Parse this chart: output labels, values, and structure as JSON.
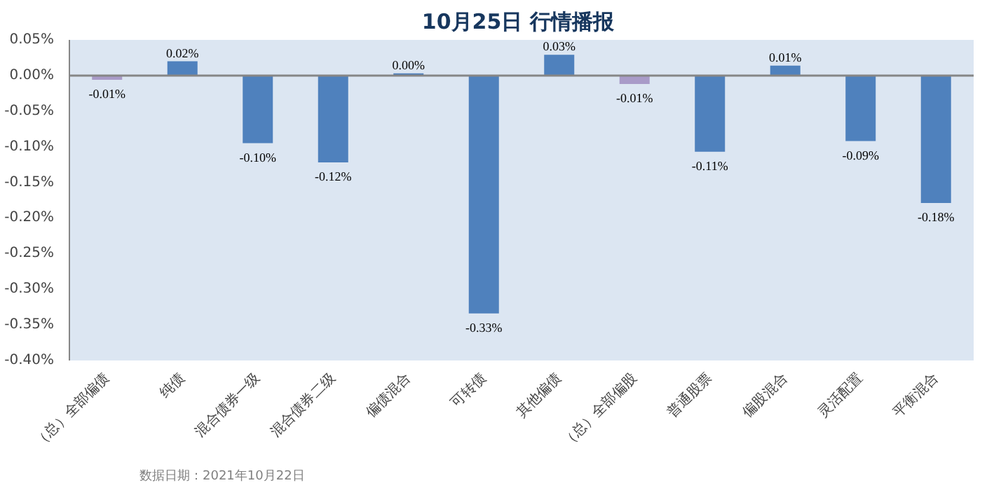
{
  "chart_data": {
    "type": "bar",
    "title": "10月25日  行情播报",
    "categories": [
      "（总）全部偏债",
      "纯债",
      "混合债券一级",
      "混合债券二级",
      "偏债混合",
      "可转债",
      "其他偏债",
      "（总）全部偏股",
      "普通股票",
      "偏股混合",
      "灵活配置",
      "平衡混合"
    ],
    "values": [
      -0.006,
      0.02,
      -0.095,
      -0.122,
      0.003,
      -0.334,
      0.029,
      -0.012,
      -0.107,
      0.014,
      -0.092,
      -0.179
    ],
    "value_labels": [
      "-0.01%",
      "0.02%",
      "-0.10%",
      "-0.12%",
      "0.00%",
      "-0.33%",
      "0.03%",
      "-0.01%",
      "-0.11%",
      "0.01%",
      "-0.09%",
      "-0.18%"
    ],
    "colors": [
      "#a99bc8",
      "#4f81bd",
      "#4f81bd",
      "#4f81bd",
      "#4f81bd",
      "#4f81bd",
      "#4f81bd",
      "#a99bc8",
      "#4f81bd",
      "#4f81bd",
      "#4f81bd",
      "#4f81bd"
    ],
    "ylim": [
      -0.4,
      0.05
    ],
    "yticks": [
      {
        "value": 0.05,
        "label": "0.05%"
      },
      {
        "value": 0.0,
        "label": "0.00%"
      },
      {
        "value": -0.05,
        "label": "-0.05%"
      },
      {
        "value": -0.1,
        "label": "-0.10%"
      },
      {
        "value": -0.15,
        "label": "-0.15%"
      },
      {
        "value": -0.2,
        "label": "-0.20%"
      },
      {
        "value": -0.25,
        "label": "-0.25%"
      },
      {
        "value": -0.3,
        "label": "-0.30%"
      },
      {
        "value": -0.35,
        "label": "-0.35%"
      },
      {
        "value": -0.4,
        "label": "-0.40%"
      }
    ],
    "annotations": [
      "数据日期：2021年10月22日"
    ]
  }
}
